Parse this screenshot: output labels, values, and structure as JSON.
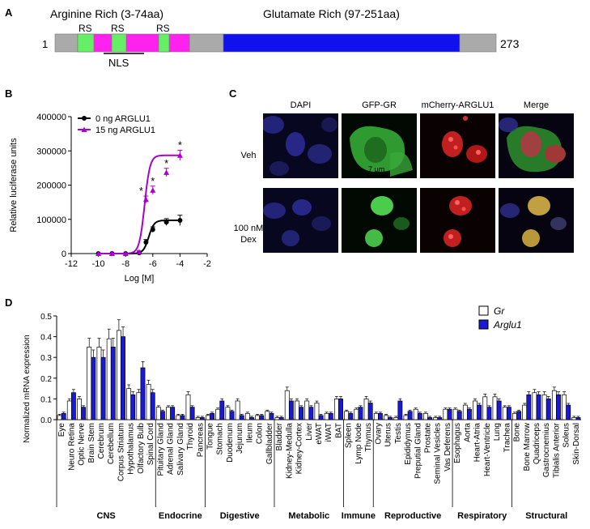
{
  "panels": {
    "a": "A",
    "b": "B",
    "c": "C",
    "d": "D"
  },
  "panel_a": {
    "arginine_label": "Arginine Rich (3-74aa)",
    "glutamate_label": "Glutamate Rich (97-251aa)",
    "start": "1",
    "end": "273",
    "rs_labels": [
      "RS",
      "RS",
      "RS"
    ],
    "nls_label": "NLS",
    "colors": {
      "rs": "#66ee66",
      "arg": "#ff22ee",
      "glu": "#1111ee",
      "other": "#aaaaaa"
    }
  },
  "panel_c": {
    "columns": [
      "DAPI",
      "GFP-GR",
      "mCherry-ARGLU1",
      "Merge"
    ],
    "rows": [
      "Veh",
      "100 nM\nDex"
    ],
    "row1_label": "Veh",
    "row2_line1": "100 nM",
    "row2_line2": "Dex",
    "scale_bar": "7 µm"
  },
  "chart_data": [
    {
      "type": "line",
      "panel": "B",
      "xlabel": "Log [M]",
      "ylabel": "Relative luciferase units",
      "xlim": [
        -12,
        -2
      ],
      "ylim": [
        0,
        400000
      ],
      "xticks": [
        -12,
        -10,
        -8,
        -6,
        -4,
        -2
      ],
      "yticks": [
        0,
        100000,
        200000,
        300000,
        400000
      ],
      "series": [
        {
          "name": "0 ng  ARGLU1",
          "color": "#000000",
          "x": [
            -10,
            -9,
            -8,
            -7,
            -6.5,
            -6,
            -5,
            -4
          ],
          "y": [
            0,
            0,
            0,
            2000,
            33000,
            70000,
            92000,
            97000
          ],
          "err": [
            0,
            0,
            0,
            2000,
            8000,
            8000,
            10000,
            15000
          ]
        },
        {
          "name": "15 ng ARGLU1",
          "color": "#aa00cc",
          "x": [
            -10,
            -9,
            -8,
            -7,
            -6.5,
            -6,
            -5,
            -4
          ],
          "y": [
            0,
            0,
            0,
            5000,
            158000,
            185000,
            237000,
            287000
          ],
          "err": [
            0,
            0,
            0,
            3000,
            10000,
            12000,
            12000,
            15000
          ]
        }
      ],
      "significance": [
        -6.5,
        -6,
        -5,
        -4
      ],
      "annotation": "*"
    },
    {
      "type": "bar",
      "panel": "D",
      "ylabel": "Normalized mRNA expression",
      "ylim": [
        0,
        0.5
      ],
      "yticks": [
        0,
        0.1,
        0.2,
        0.3,
        0.4,
        0.5
      ],
      "legend": [
        "Gr",
        "Arglu1"
      ],
      "colors": {
        "Gr": "#ffffff",
        "Arglu1": "#1a1ad6"
      },
      "groups": [
        {
          "name": "CNS",
          "tissues": [
            "Eye",
            "Neuro Retina",
            "Optic Nerve",
            "Brain Stem",
            "Cerebrum",
            "Cerebellum",
            "Corpus Striatum",
            "Hypothalamus",
            "Olfactory Bulb",
            "Spinal Cord"
          ]
        },
        {
          "name": "Endocrine",
          "tissues": [
            "Pituitary Gland",
            "Adrenal Gland",
            "Salivary Gland",
            "Thyroid",
            "Pancreas"
          ]
        },
        {
          "name": "Digestive",
          "tissues": [
            "Tongue",
            "Stomach",
            "Duodenum",
            "Jejunum",
            "Ileum",
            "Colon",
            "Gallbladder"
          ]
        },
        {
          "name": "Metabolic",
          "tissues": [
            "Bladder",
            "Kidney-Medulla",
            "Kidney-Cortex",
            "Liver",
            "eWAT",
            "iWAT",
            "BAT"
          ]
        },
        {
          "name": "Immune",
          "tissues": [
            "Spleen",
            "Lymp Node",
            "Thymus"
          ]
        },
        {
          "name": "Reproductive",
          "tissues": [
            "Ovary",
            "Uterus",
            "Testis",
            "Epididymus",
            "Preputial Gland",
            "Prostate",
            "Seminal Vesicles",
            "Vas Deferens"
          ]
        },
        {
          "name": "Respiratory",
          "tissues": [
            "Esophagus",
            "Aorta",
            "Heart-Atria",
            "Heart-Ventricle",
            "Lung",
            "Trachea"
          ]
        },
        {
          "name": "Structural",
          "tissues": [
            "Bone",
            "Bone Marrow",
            "Quadriceps",
            "Gastrocnemius",
            "Tibialis Anterior",
            "Soleus",
            "Skin-Dorsal"
          ]
        }
      ],
      "series": [
        {
          "name": "Gr",
          "values": [
            0.02,
            0.09,
            0.1,
            0.35,
            0.35,
            0.39,
            0.43,
            0.15,
            0.13,
            0.17,
            0.06,
            0.06,
            0.02,
            0.12,
            0.01,
            0.02,
            0.05,
            0.06,
            0.09,
            0.03,
            0.02,
            0.04,
            0.01,
            0.14,
            0.09,
            0.09,
            0.08,
            0.03,
            0.1,
            0.04,
            0.05,
            0.1,
            0.03,
            0.02,
            0.01,
            0.02,
            0.05,
            0.03,
            0.01,
            0.05,
            0.05,
            0.07,
            0.09,
            0.11,
            0.11,
            0.06,
            0.03,
            0.07,
            0.13,
            0.12,
            0.14,
            0.12,
            0.01
          ]
        },
        {
          "name": "Arglu1",
          "values": [
            0.03,
            0.13,
            0.06,
            0.3,
            0.3,
            0.35,
            0.4,
            0.12,
            0.25,
            0.13,
            0.04,
            0.06,
            0.02,
            0.06,
            0.01,
            0.03,
            0.09,
            0.04,
            0.02,
            0.01,
            0.02,
            0.03,
            0.01,
            0.09,
            0.06,
            0.06,
            0.02,
            0.03,
            0.1,
            0.03,
            0.06,
            0.08,
            0.03,
            0.01,
            0.09,
            0.04,
            0.03,
            0.01,
            0.01,
            0.05,
            0.04,
            0.05,
            0.07,
            0.06,
            0.09,
            0.06,
            0.04,
            0.12,
            0.12,
            0.1,
            0.12,
            0.07,
            0.01
          ]
        }
      ]
    }
  ]
}
